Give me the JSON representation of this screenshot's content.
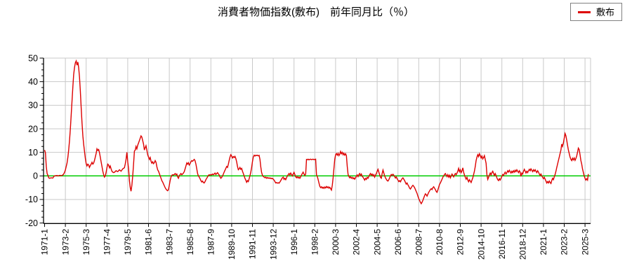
{
  "title": "消費者物価指数(敷布)　前年同月比（％）",
  "legend": {
    "label": "敷布"
  },
  "colors": {
    "series": "#dd0000",
    "zero_line": "#00cc00",
    "grid": "#c9c9c9",
    "axis": "#000000",
    "text": "#000000",
    "background": "#ffffff"
  },
  "chart_data": {
    "type": "line",
    "title": "消費者物価指数(敷布)　前年同月比（％）",
    "series_name": "敷布",
    "unit": "%",
    "freq": "monthly",
    "start_month": "1971-01",
    "end_month": "2025-07",
    "ylim": [
      -20,
      50
    ],
    "yticks": [
      50,
      40,
      30,
      20,
      10,
      0,
      -10,
      -20
    ],
    "y_minor_step": 2.5,
    "grid": true,
    "legend_position": "top-right",
    "zero_line": true,
    "xtick_labels": [
      "1971-1",
      "1973-2",
      "1975-3",
      "1977-4",
      "1979-5",
      "1981-6",
      "1983-7",
      "1985-8",
      "1987-9",
      "1989-10",
      "1991-11",
      "1993-12",
      "1996-1",
      "1998-2",
      "2000-3",
      "2002-4",
      "2004-5",
      "2006-6",
      "2008-7",
      "2010-8",
      "2012-9",
      "2014-10",
      "2016-11",
      "2018-12",
      "2021-1",
      "2023-2",
      "2025-3"
    ],
    "xtick_interval_months": 25,
    "values": [
      11,
      9.8,
      4,
      1,
      0.3,
      -0.8,
      -1,
      -0.9,
      -0.8,
      -0.9,
      -0.9,
      -0.3,
      0,
      0.1,
      0.1,
      0.2,
      0,
      0.1,
      0.2,
      0.2,
      0.1,
      0.2,
      0.4,
      0.8,
      1.5,
      2.5,
      4,
      5.5,
      8,
      11,
      15,
      20,
      26,
      32,
      38,
      43,
      46,
      48,
      48.8,
      47,
      48.3,
      46,
      42,
      36,
      29,
      22.5,
      17,
      13.5,
      10.5,
      7.5,
      5.2,
      4.2,
      5,
      4.6,
      3.6,
      4.4,
      5,
      5.8,
      5,
      5.5,
      6.5,
      8,
      9.5,
      11.5,
      10.8,
      11.2,
      10,
      8,
      6,
      4,
      2,
      0.5,
      -0.5,
      0,
      1.5,
      3.5,
      5,
      4.6,
      3.4,
      4.2,
      3,
      2,
      1.6,
      1.4,
      1.5,
      1.9,
      2.2,
      2,
      1.8,
      2.2,
      2.6,
      2.3,
      2,
      2.5,
      3,
      3.2,
      3.5,
      5,
      7,
      10,
      6,
      3,
      -2,
      -5,
      -6.5,
      -4,
      0,
      5,
      10.5,
      11,
      12.5,
      11.5,
      13,
      14,
      15,
      16,
      17,
      16.5,
      15,
      13.5,
      11,
      12,
      12.8,
      11,
      9,
      8,
      7,
      7.8,
      6.2,
      5.4,
      6,
      5.2,
      5.6,
      6.5,
      5.8,
      4,
      2.6,
      2,
      1,
      0,
      -1,
      -2,
      -2.6,
      -3.4,
      -4.2,
      -5,
      -5.6,
      -6,
      -6.3,
      -5.8,
      -4,
      -2,
      -0.5,
      0.3,
      0.5,
      0.4,
      0.6,
      1,
      0.5,
      0.8,
      -0.4,
      -1,
      0,
      0.6,
      1,
      0.5,
      0.8,
      1.2,
      1.8,
      3,
      4.2,
      5.5,
      5,
      5.6,
      4.6,
      5.2,
      6,
      6.5,
      6.2,
      6.6,
      7,
      6.4,
      5,
      3,
      1,
      0,
      -0.5,
      -1.2,
      -2,
      -2.6,
      -2.2,
      -2.8,
      -3,
      -2.4,
      -1.6,
      -1,
      -0.4,
      0.2,
      0.5,
      0.3,
      0.6,
      0.4,
      0.8,
      0.5,
      0.8,
      1.2,
      0.6,
      1,
      1.4,
      0.8,
      0.4,
      -0.4,
      -1,
      -0.6,
      0,
      0.8,
      1.6,
      2.4,
      3.2,
      4,
      3.6,
      5,
      6.5,
      8,
      9,
      8.4,
      7.6,
      8.2,
      7.8,
      8.3,
      7.4,
      6,
      4,
      2.6,
      3,
      3.6,
      2.8,
      3.2,
      2,
      1,
      0,
      -1,
      -1.8,
      -2.7,
      -2,
      -2.4,
      -1.2,
      0,
      1.5,
      3.5,
      6,
      8,
      8.8,
      8.4,
      8.8,
      8.6,
      8.8,
      8.5,
      8.7,
      7,
      4,
      1.5,
      0.3,
      -0.2,
      -0.5,
      -0.8,
      -0.5,
      -1,
      -0.7,
      -1,
      -0.8,
      -1.1,
      -0.9,
      -1.2,
      -1,
      -1.4,
      -1.8,
      -2.4,
      -3,
      -2.8,
      -3.1,
      -2.9,
      -3.1,
      -2.6,
      -2,
      -1.4,
      -0.8,
      -0.5,
      -1.5,
      -1,
      -1.6,
      -0.8,
      0,
      0.5,
      1,
      0.4,
      1.2,
      0.6,
      0,
      0.8,
      1.5,
      0.6,
      -0.4,
      -0.8,
      -0.3,
      -0.9,
      -0.5,
      -1,
      -0.4,
      0.4,
      1,
      1.6,
      0.8,
      0.2,
      0.8,
      7,
      6.9,
      7.1,
      6.8,
      7,
      7.1,
      6.9,
      7,
      7.1,
      6.9,
      7,
      7.1,
      0.5,
      -0.3,
      -1.5,
      -3,
      -4.4,
      -5,
      -4.6,
      -5.2,
      -4.8,
      -5.3,
      -4.7,
      -5.1,
      -4.5,
      -5,
      -4.6,
      -5.2,
      -4.8,
      -5.4,
      -6,
      -4,
      -1,
      3,
      7,
      9,
      9.5,
      8.8,
      9.6,
      8.6,
      9.2,
      10.4,
      9.4,
      10,
      9,
      9.6,
      8.8,
      9.4,
      8.6,
      4,
      0.6,
      -0.2,
      -0.8,
      -0.4,
      -1,
      -0.6,
      -1.2,
      -0.8,
      -1.4,
      -0.8,
      -0.2,
      0.4,
      -0.3,
      0.6,
      1,
      0.2,
      0.8,
      -0.2,
      -0.6,
      -1.2,
      -1.8,
      -1,
      -1.5,
      -0.6,
      -1,
      -0.2,
      0.5,
      1,
      0.3,
      0.8,
      0,
      0.5,
      -0.5,
      0.3,
      1,
      2,
      2.8,
      1.6,
      0.4,
      -0.6,
      -1,
      1,
      2.5,
      1.2,
      0,
      -0.8,
      -1.4,
      -2,
      -2.2,
      -1.6,
      -0.8,
      0,
      0.6,
      0.2,
      0.7,
      0.3,
      -0.3,
      -0.9,
      -0.4,
      -1.2,
      -1.8,
      -2.4,
      -2,
      -2.5,
      -1.8,
      -1.2,
      -0.8,
      -1.4,
      -2,
      -2.8,
      -3.5,
      -3,
      -3.8,
      -4.4,
      -5.2,
      -5.6,
      -5,
      -4.4,
      -4,
      -4.4,
      -5,
      -5.8,
      -6.6,
      -7.4,
      -8.6,
      -9.6,
      -10.4,
      -11.2,
      -11.8,
      -11.2,
      -10.4,
      -9.4,
      -8.4,
      -7.6,
      -8,
      -8.6,
      -7.8,
      -7,
      -6.4,
      -5.8,
      -5.4,
      -5.8,
      -5,
      -4.6,
      -5.2,
      -5.8,
      -6.6,
      -7,
      -6,
      -4.8,
      -3.6,
      -3,
      -2.2,
      -1.4,
      -0.6,
      0,
      0.6,
      1,
      0.4,
      -0.3,
      0.5,
      -0.5,
      0.3,
      -0.8,
      0,
      0.8,
      0.3,
      -0.4,
      0.4,
      1,
      0.5,
      1.2,
      2,
      3.2,
      1.8,
      2.6,
      1.4,
      2.2,
      3.4,
      1.6,
      0.4,
      -0.6,
      -1.4,
      -0.6,
      -1.8,
      -2.5,
      -1.6,
      -2.2,
      -2.8,
      -1.8,
      -0.8,
      0.5,
      2,
      4,
      6.5,
      8,
      9,
      8.2,
      9.4,
      8.6,
      7.6,
      8.4,
      7.2,
      7.8,
      8.6,
      7,
      5.4,
      0.5,
      -1.5,
      -0.6,
      0.4,
      1.2,
      0.4,
      1.4,
      2,
      1,
      0.2,
      1,
      0.2,
      -0.8,
      -1.6,
      -2,
      -1.2,
      -1.8,
      -1,
      -0.2,
      0.6,
      0.2,
      1,
      1.6,
      0.8,
      1.4,
      2.2,
      1.6,
      2.4,
      1.8,
      1.2,
      2,
      1.4,
      2.2,
      1.6,
      2.4,
      1.8,
      2.6,
      2,
      1.4,
      2.2,
      1.6,
      -0.2,
      1.2,
      0.8,
      2,
      2.8,
      2,
      1.2,
      2,
      1.4,
      2.2,
      2.8,
      2.2,
      3,
      2.4,
      1.8,
      2.6,
      2,
      2.6,
      2,
      1.4,
      2.2,
      1.6,
      0.8,
      0.2,
      0.8,
      0,
      -0.6,
      -1.2,
      -0.6,
      -1.4,
      -2.2,
      -3,
      -2.4,
      -3,
      -2.2,
      -2.8,
      -3.2,
      -2,
      -1,
      -1.6,
      -0.4,
      0.6,
      2,
      3.5,
      5,
      6.5,
      8,
      9.5,
      11,
      13.5,
      12.5,
      14,
      16,
      18,
      17,
      15,
      13,
      11,
      9.5,
      8,
      7,
      6.5,
      7.5,
      6.8,
      7.6,
      6.6,
      7.4,
      8.5,
      10,
      11.8,
      11.2,
      9,
      6.5,
      5,
      3,
      1.5,
      0,
      -1,
      -1.8,
      -1.2,
      -1.8,
      0.8
    ]
  }
}
